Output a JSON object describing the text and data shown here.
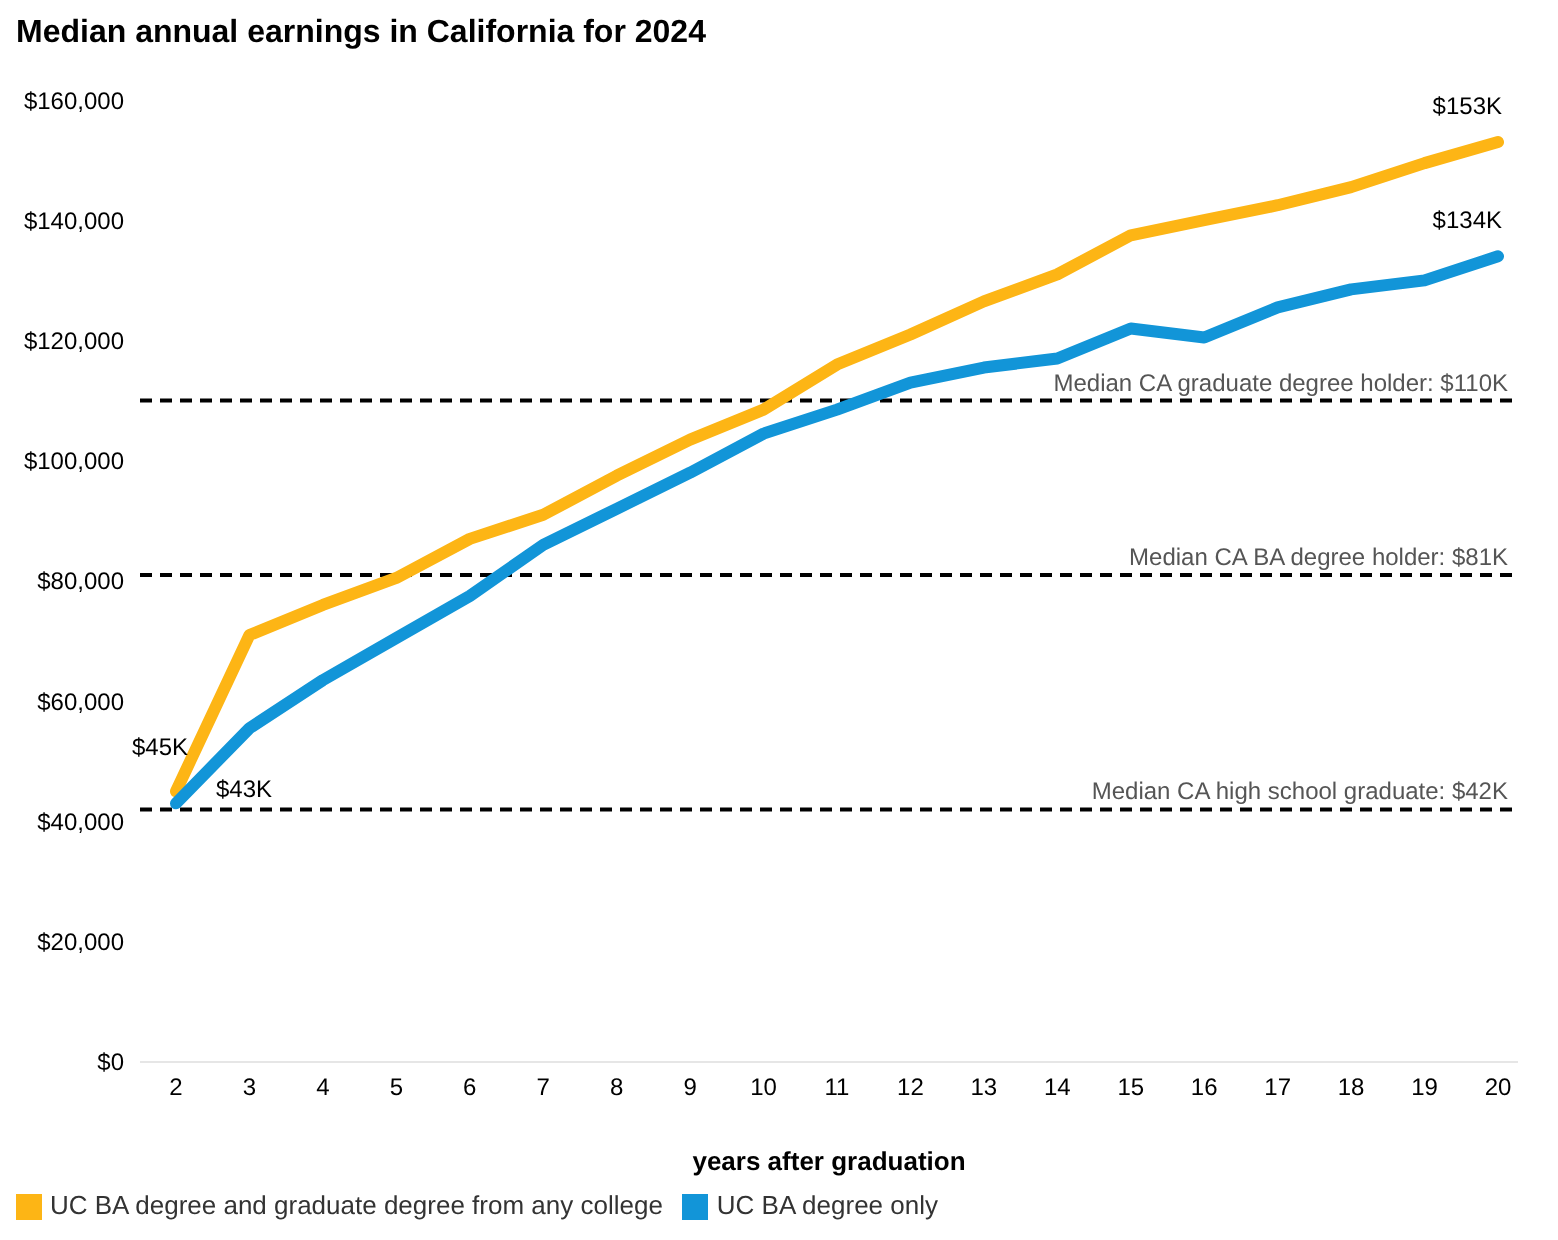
{
  "chart_data": {
    "type": "line",
    "title": "Median annual earnings in California for 2024",
    "xlabel": "years after graduation",
    "categories": [
      "2",
      "3",
      "4",
      "5",
      "6",
      "7",
      "8",
      "9",
      "10",
      "11",
      "12",
      "13",
      "14",
      "15",
      "16",
      "17",
      "18",
      "19",
      "20"
    ],
    "series": [
      {
        "name": "UC BA degree and graduate degree from any college",
        "color": "#fdb515",
        "values": [
          45000,
          71000,
          76000,
          80500,
          87000,
          91000,
          97500,
          103500,
          108500,
          116000,
          121000,
          126500,
          131000,
          137500,
          140000,
          142500,
          145500,
          149500,
          153000
        ],
        "value_labels": [
          "$45K",
          null,
          null,
          null,
          null,
          null,
          null,
          null,
          null,
          null,
          null,
          null,
          null,
          null,
          null,
          null,
          null,
          null,
          "$153K"
        ]
      },
      {
        "name": "UC BA degree only",
        "color": "#1295d8",
        "values": [
          43000,
          55500,
          63500,
          70500,
          77500,
          86000,
          92000,
          98000,
          104500,
          108500,
          113000,
          115500,
          117000,
          122000,
          120500,
          125500,
          128500,
          130000,
          134000
        ],
        "value_labels": [
          "$43K",
          null,
          null,
          null,
          null,
          null,
          null,
          null,
          null,
          null,
          null,
          null,
          null,
          null,
          null,
          null,
          null,
          null,
          "$134K"
        ]
      }
    ],
    "ylim": [
      0,
      160000
    ],
    "yticks": [
      {
        "value": 0,
        "label": "$0"
      },
      {
        "value": 20000,
        "label": "$20,000"
      },
      {
        "value": 40000,
        "label": "$40,000"
      },
      {
        "value": 60000,
        "label": "$60,000"
      },
      {
        "value": 80000,
        "label": "$80,000"
      },
      {
        "value": 100000,
        "label": "$100,000"
      },
      {
        "value": 120000,
        "label": "$120,000"
      },
      {
        "value": 140000,
        "label": "$140,000"
      },
      {
        "value": 160000,
        "label": "$160,000"
      }
    ],
    "ref_lines": [
      {
        "axis": "y",
        "value": 110000,
        "label": "Median CA graduate degree holder: $110K",
        "color": "#000000",
        "line_style": "dashed"
      },
      {
        "axis": "y",
        "value": 81000,
        "label": "Median CA BA degree holder: $81K",
        "color": "#000000",
        "line_style": "dashed"
      },
      {
        "axis": "y",
        "value": 42000,
        "label": "Median CA high school graduate: $42K",
        "color": "#000000",
        "line_style": "dashed"
      }
    ],
    "grid": false,
    "legend": "bottom left",
    "marker": "none",
    "line_style": "solid"
  }
}
